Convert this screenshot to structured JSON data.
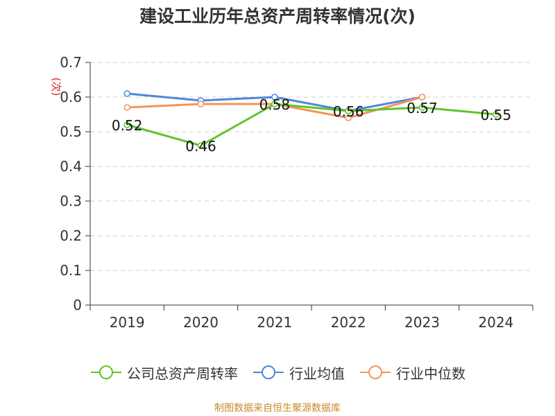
{
  "title": "建设工业历年总资产周转率情况(次)",
  "source_note": "制图数据来自恒生聚源数据库",
  "colors": {
    "company": "#5ec42b",
    "industry_avg": "#4f86d9",
    "industry_median": "#f7925a",
    "grid": "#cccccc",
    "axis": "#333333",
    "ylabel": "#d22222"
  },
  "legend": [
    {
      "label": "公司总资产周转率",
      "icon": "circle-line-icon",
      "color_key": "company"
    },
    {
      "label": "行业均值",
      "icon": "circle-line-icon",
      "color_key": "industry_avg"
    },
    {
      "label": "行业中位数",
      "icon": "circle-line-icon",
      "color_key": "industry_median"
    }
  ],
  "chart_data": {
    "type": "line",
    "title": "建设工业历年总资产周转率情况(次)",
    "xlabel": "",
    "ylabel": "(次)",
    "categories": [
      "2019",
      "2020",
      "2021",
      "2022",
      "2023",
      "2024"
    ],
    "ylim": [
      0,
      0.7
    ],
    "yticks": [
      "0",
      "0.1",
      "0.2",
      "0.3",
      "0.4",
      "0.5",
      "0.6",
      "0.7"
    ],
    "grid": true,
    "legend_position": "bottom",
    "series": [
      {
        "name": "公司总资产周转率",
        "color_key": "company",
        "values": [
          0.52,
          0.46,
          0.58,
          0.56,
          0.57,
          0.55
        ],
        "labels": [
          "0.52",
          "0.46",
          "0.58",
          "0.56",
          "0.57",
          "0.55"
        ]
      },
      {
        "name": "行业均值",
        "color_key": "industry_avg",
        "values": [
          0.61,
          0.59,
          0.6,
          0.56,
          0.6,
          null
        ]
      },
      {
        "name": "行业中位数",
        "color_key": "industry_median",
        "values": [
          0.57,
          0.58,
          0.58,
          0.54,
          0.6,
          null
        ]
      }
    ]
  }
}
